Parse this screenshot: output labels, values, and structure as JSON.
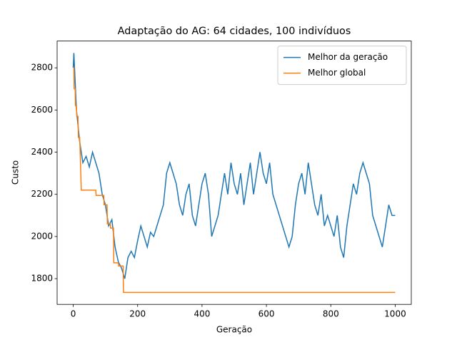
{
  "chart_data": {
    "type": "line",
    "title": "Adaptação do AG: 64 cidades, 100 indivíduos",
    "xlabel": "Geração",
    "ylabel": "Custo",
    "xlim": [
      -50,
      1050
    ],
    "ylim": [
      1678,
      2927
    ],
    "xticks": [
      0,
      200,
      400,
      600,
      800,
      1000
    ],
    "yticks": [
      1800,
      2000,
      2200,
      2400,
      2600,
      2800
    ],
    "legend": "upper right",
    "series": [
      {
        "name": "Melhor da geração",
        "color": "#1f77b4",
        "x": [
          0,
          2,
          10,
          20,
          30,
          40,
          50,
          60,
          70,
          80,
          90,
          100,
          110,
          120,
          130,
          140,
          150,
          160,
          170,
          180,
          190,
          200,
          210,
          220,
          230,
          240,
          250,
          260,
          270,
          280,
          290,
          300,
          310,
          320,
          330,
          340,
          350,
          360,
          370,
          380,
          390,
          400,
          410,
          420,
          430,
          440,
          450,
          460,
          470,
          480,
          490,
          500,
          510,
          520,
          530,
          540,
          550,
          560,
          570,
          580,
          590,
          600,
          610,
          620,
          630,
          640,
          650,
          660,
          670,
          680,
          690,
          700,
          710,
          720,
          730,
          740,
          750,
          760,
          770,
          780,
          790,
          800,
          810,
          820,
          830,
          840,
          850,
          860,
          870,
          880,
          890,
          900,
          910,
          920,
          930,
          940,
          950,
          960,
          970,
          980,
          990,
          1000
        ],
        "values": [
          2800,
          2870,
          2600,
          2450,
          2350,
          2380,
          2330,
          2400,
          2350,
          2300,
          2200,
          2150,
          2050,
          2080,
          1950,
          1880,
          1850,
          1800,
          1900,
          1930,
          1900,
          1980,
          2050,
          2000,
          1950,
          2020,
          2000,
          2050,
          2100,
          2150,
          2300,
          2350,
          2300,
          2250,
          2150,
          2100,
          2200,
          2250,
          2100,
          2050,
          2150,
          2250,
          2300,
          2200,
          2000,
          2050,
          2100,
          2200,
          2300,
          2200,
          2350,
          2250,
          2200,
          2300,
          2150,
          2250,
          2350,
          2200,
          2300,
          2400,
          2300,
          2250,
          2350,
          2200,
          2150,
          2100,
          2050,
          2000,
          1950,
          2000,
          2150,
          2250,
          2300,
          2200,
          2350,
          2250,
          2150,
          2100,
          2200,
          2050,
          2100,
          2050,
          2000,
          2100,
          1950,
          1900,
          2050,
          2150,
          2250,
          2200,
          2300,
          2350,
          2300,
          2250,
          2100,
          2050,
          2000,
          1950,
          2050,
          2150,
          2100,
          2100
        ]
      },
      {
        "name": "Melhor global",
        "color": "#ff7f0e",
        "x": [
          0,
          2,
          3,
          6,
          7,
          10,
          11,
          15,
          16,
          20,
          21,
          25,
          70,
          71,
          95,
          96,
          105,
          106,
          115,
          116,
          125,
          126,
          140,
          141,
          155,
          156,
          1000
        ],
        "values": [
          2800,
          2800,
          2700,
          2700,
          2620,
          2620,
          2570,
          2570,
          2470,
          2470,
          2430,
          2220,
          2220,
          2195,
          2195,
          2150,
          2150,
          2060,
          2060,
          2040,
          2040,
          1875,
          1875,
          1860,
          1860,
          1735,
          1735
        ]
      }
    ]
  }
}
